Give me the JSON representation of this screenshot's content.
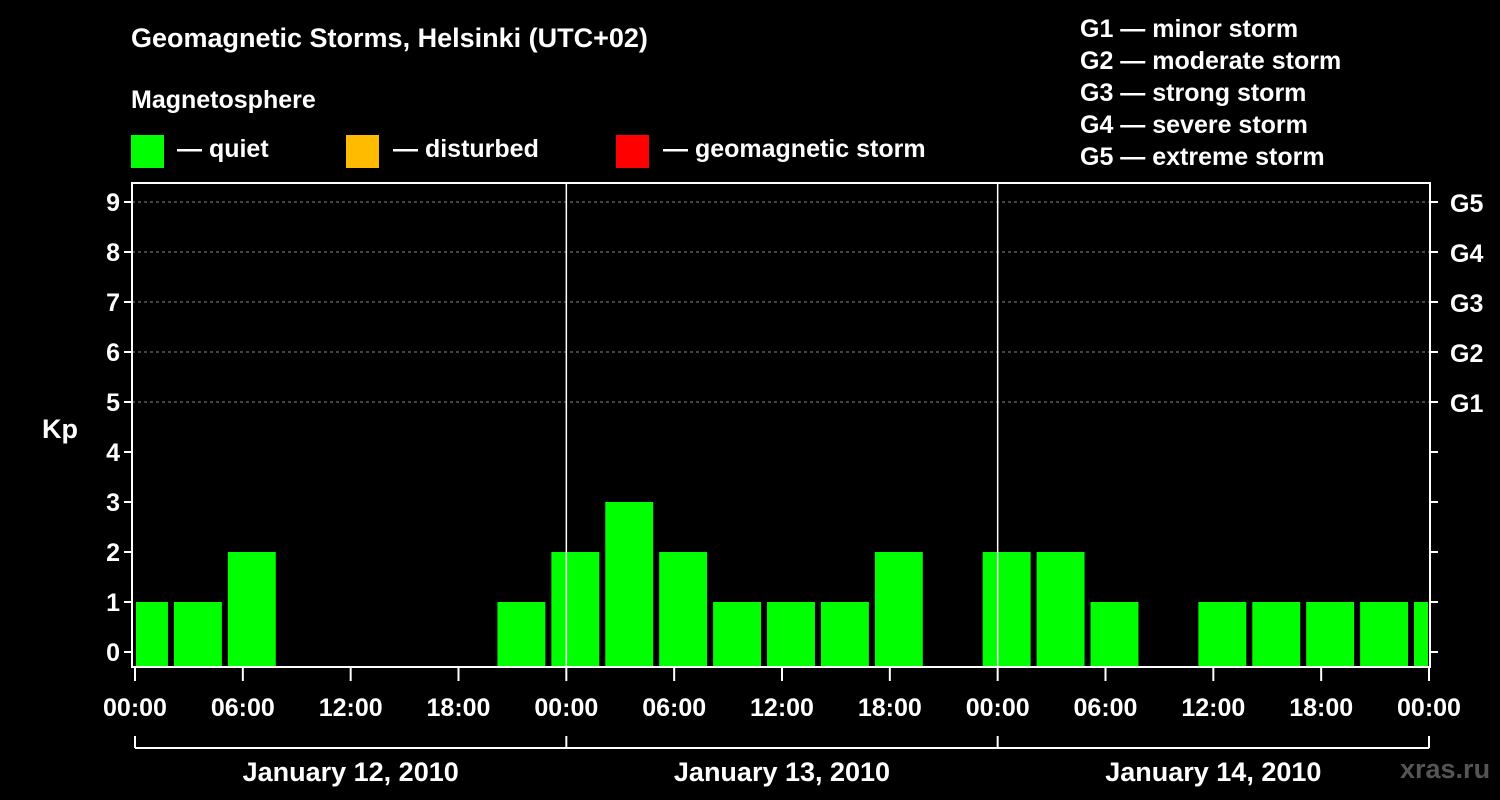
{
  "header": {
    "title": "Geomagnetic Storms, Helsinki (UTC+02)",
    "subtitle": "Magnetosphere",
    "legend": [
      {
        "label": "— quiet",
        "color": "#00ff00"
      },
      {
        "label": "— disturbed",
        "color": "#ffbb00"
      },
      {
        "label": "— geomagnetic storm",
        "color": "#ff0000"
      }
    ],
    "scale": [
      "G1 — minor storm",
      "G2 — moderate storm",
      "G3 — strong storm",
      "G4 — severe storm",
      "G5 — extreme storm"
    ]
  },
  "watermark": "xras.ru",
  "chart_data": {
    "type": "bar",
    "ylabel": "Kp",
    "ylim": [
      0,
      9
    ],
    "yticks": [
      "0",
      "1",
      "2",
      "3",
      "4",
      "5",
      "6",
      "7",
      "8",
      "9"
    ],
    "right_labels": [
      {
        "kp": 5,
        "label": "G1"
      },
      {
        "kp": 6,
        "label": "G2"
      },
      {
        "kp": 7,
        "label": "G3"
      },
      {
        "kp": 8,
        "label": "G4"
      },
      {
        "kp": 9,
        "label": "G5"
      }
    ],
    "xticks": [
      "00:00",
      "06:00",
      "12:00",
      "18:00",
      "00:00",
      "06:00",
      "12:00",
      "18:00",
      "00:00",
      "06:00",
      "12:00",
      "18:00",
      "00:00"
    ],
    "days": [
      "January 12, 2010",
      "January 13, 2010",
      "January 14, 2010"
    ],
    "interval_hours": 3,
    "start_hour": -1,
    "values": [
      1,
      1,
      2,
      0,
      0,
      0,
      0,
      1,
      2,
      3,
      2,
      1,
      1,
      1,
      2,
      0,
      2,
      2,
      1,
      0,
      1,
      1,
      1,
      1,
      1
    ],
    "bar_color": "#00ff00"
  }
}
